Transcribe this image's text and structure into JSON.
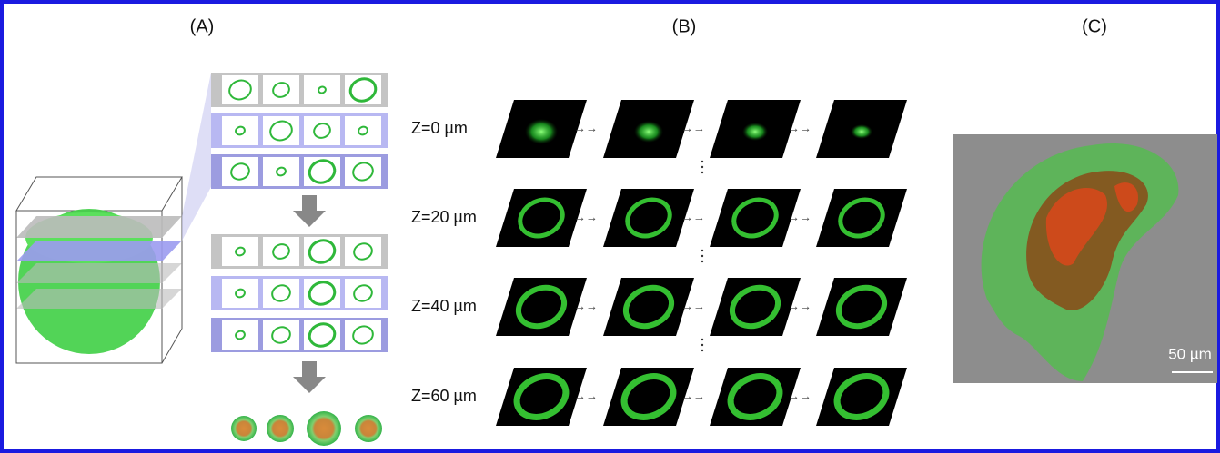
{
  "panels": [
    {
      "label": "(A)"
    },
    {
      "label": "(B)",
      "rows": [
        "Z=0 µm",
        "Z=20 µm",
        "Z=40 µm",
        "Z=60 µm"
      ]
    },
    {
      "label": "(C)",
      "scale_bar": "50 µm"
    }
  ]
}
